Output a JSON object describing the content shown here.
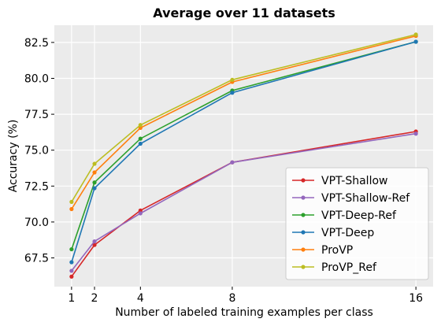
{
  "chart_data": {
    "type": "line",
    "title": "Average over 11 datasets",
    "xlabel": "Number of labeled training examples per class",
    "ylabel": "Accuracy (%)",
    "x": [
      1,
      2,
      4,
      8,
      16
    ],
    "xticks": [
      "1",
      "2",
      "4",
      "8",
      "16"
    ],
    "xlim": [
      0.25,
      16.75
    ],
    "ylim": [
      65.5,
      83.7
    ],
    "yticks": [
      "67.5",
      "70.0",
      "72.5",
      "75.0",
      "77.5",
      "80.0",
      "82.5"
    ],
    "ytick_values": [
      67.5,
      70.0,
      72.5,
      75.0,
      77.5,
      80.0,
      82.5
    ],
    "grid": true,
    "legend_position": "lower-right",
    "series": [
      {
        "name": "VPT-Shallow",
        "color": "#d62728",
        "values": [
          66.2,
          68.4,
          70.8,
          74.15,
          76.3
        ]
      },
      {
        "name": "VPT-Shallow-Ref",
        "color": "#9467bd",
        "values": [
          66.6,
          68.65,
          70.6,
          74.15,
          76.15
        ]
      },
      {
        "name": "VPT-Deep-Ref",
        "color": "#2ca02c",
        "values": [
          68.1,
          72.75,
          75.8,
          79.15,
          82.55
        ]
      },
      {
        "name": "VPT-Deep",
        "color": "#1f77b4",
        "values": [
          67.2,
          72.35,
          75.45,
          79.0,
          82.55
        ]
      },
      {
        "name": "ProVP",
        "color": "#ff7f0e",
        "values": [
          70.9,
          73.45,
          76.55,
          79.75,
          82.95
        ]
      },
      {
        "name": "ProVP_Ref",
        "color": "#bcbd22",
        "values": [
          71.4,
          74.05,
          76.75,
          79.9,
          83.05
        ]
      }
    ]
  }
}
